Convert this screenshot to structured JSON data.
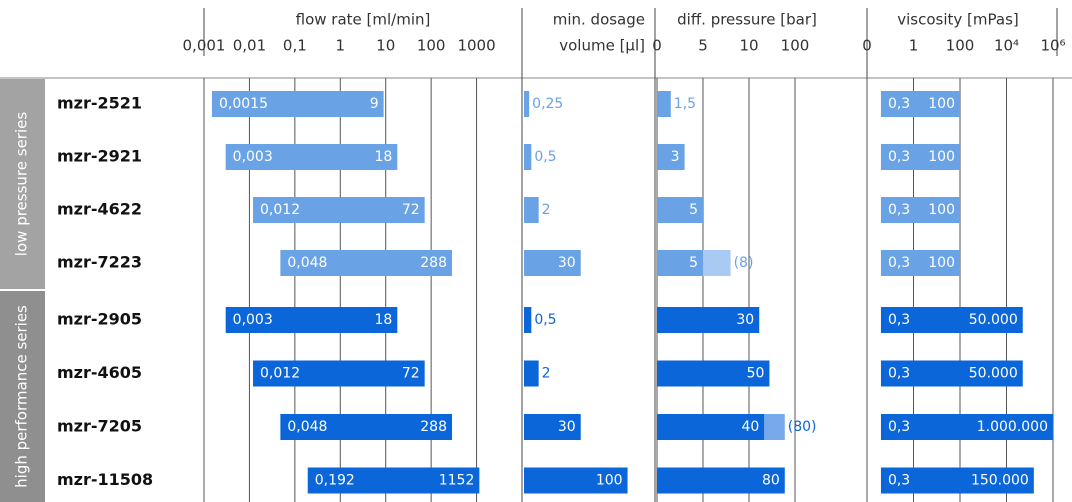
{
  "groups": [
    {
      "name": "low pressure series",
      "color": "#6aa2e6",
      "extension_color": "#a9caf2",
      "box_color": "#a3a3a3",
      "products": [
        "mzr-2521",
        "mzr-2921",
        "mzr-4622",
        "mzr-7223"
      ]
    },
    {
      "name": "high performance series",
      "color": "#0b66da",
      "extension_color": "#78a9ea",
      "box_color": "#8f8f8f",
      "products": [
        "mzr-2905",
        "mzr-4605",
        "mzr-7205",
        "mzr-11508"
      ]
    }
  ],
  "chart_data": [
    {
      "type": "range-bar",
      "title": "flow rate [ml/min]",
      "scale": "log",
      "xlim": [
        0.001,
        10000
      ],
      "xticks": [
        {
          "value": 0.001,
          "label": "0,001"
        },
        {
          "value": 0.01,
          "label": "0,01"
        },
        {
          "value": 0.1,
          "label": "0,1"
        },
        1,
        10,
        100,
        1000
      ],
      "grid": true,
      "low": [
        0.0015,
        0.003,
        0.012,
        0.048,
        0.003,
        0.012,
        0.048,
        0.192
      ],
      "low_labels": [
        "0,0015",
        "0,003",
        "0,012",
        "0,048",
        "0,003",
        "0,012",
        "0,048",
        "0,192"
      ],
      "high": [
        9,
        18,
        72,
        288,
        18,
        72,
        288,
        1152
      ]
    },
    {
      "type": "bar",
      "title": "min. dosage",
      "subtitle": "volume [µl]",
      "scale": "sqrt",
      "xlim": [
        0,
        160
      ],
      "values": [
        0.25,
        0.5,
        2,
        30,
        0.5,
        2,
        30,
        100
      ],
      "value_labels": [
        "0,25",
        "0,5",
        "2",
        "30",
        "0,5",
        "2",
        "30",
        "100"
      ]
    },
    {
      "type": "bar",
      "title": "diff. pressure [bar]",
      "scale": "piecewise-linear",
      "xticks": [
        0,
        5,
        10,
        100
      ],
      "grid": true,
      "values": [
        1.5,
        3,
        5,
        5,
        30,
        50,
        40,
        80
      ],
      "value_labels": [
        "1,5",
        "3",
        "5",
        "5",
        "30",
        "50",
        "40",
        "80"
      ],
      "max_values": [
        null,
        null,
        null,
        8,
        null,
        null,
        80,
        null
      ],
      "max_value_labels": [
        null,
        null,
        null,
        "(8)",
        null,
        null,
        "(80)",
        null
      ]
    },
    {
      "type": "range-bar",
      "title": "viscosity [mPas]",
      "scale": "piecewise-log",
      "xticks": [
        0,
        1,
        100,
        {
          "value": 10000,
          "label": "10⁴"
        },
        {
          "value": 1000000,
          "label": "10⁶"
        }
      ],
      "grid": true,
      "low": [
        0.3,
        0.3,
        0.3,
        0.3,
        0.3,
        0.3,
        0.3,
        0.3
      ],
      "low_labels": [
        "0,3",
        "0,3",
        "0,3",
        "0,3",
        "0,3",
        "0,3",
        "0,3",
        "0,3"
      ],
      "high": [
        100,
        100,
        100,
        100,
        50000,
        50000,
        1000000,
        150000
      ],
      "high_labels": [
        "100",
        "100",
        "100",
        "100",
        "50.000",
        "50.000",
        "1.000.000",
        "150.000"
      ]
    }
  ]
}
